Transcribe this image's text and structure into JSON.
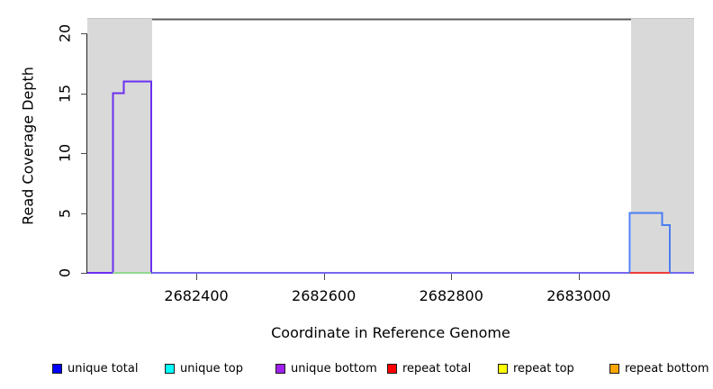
{
  "chart_data": {
    "type": "line",
    "subtype": "step-coverage-plot",
    "title": "",
    "xlabel": "Coordinate in Reference Genome",
    "ylabel": "Read Coverage Depth",
    "xlim": [
      2682229,
      2683181
    ],
    "ylim": [
      0,
      21.3
    ],
    "x_ticks": [
      2682400,
      2682600,
      2682800,
      2683000
    ],
    "y_ticks": [
      0,
      5,
      10,
      15,
      20
    ],
    "grid": false,
    "plot_bg": "#ffffff",
    "repeat_region_shading": {
      "color": "#d9d9d9",
      "regions": [
        [
          2682229,
          2682331
        ],
        [
          2683082,
          2683181
        ]
      ]
    },
    "top_extent_line": {
      "y": 21.2,
      "from": 2682331,
      "to": 2683082,
      "color": "#5b5b5b"
    },
    "series": [
      {
        "name": "zero-coverage-baseline",
        "color": "#7667ee",
        "steps": [
          [
            2682229,
            0
          ]
        ],
        "end": 2683181
      },
      {
        "name": "unique-bottom-left-peak",
        "color": "#6b2ff0",
        "steps": [
          [
            2682229,
            0
          ],
          [
            2682269,
            15
          ],
          [
            2682286,
            16
          ],
          [
            2682329,
            0
          ]
        ],
        "end": 2682331
      },
      {
        "name": "unique-total-right-peak",
        "color": "#4a7df2",
        "steps": [
          [
            2683078,
            0
          ],
          [
            2683080,
            5
          ],
          [
            2683131,
            4
          ],
          [
            2683143,
            0
          ]
        ],
        "end": 2683145
      },
      {
        "name": "repeat-total-zero-segment",
        "color": "#ef3b3b",
        "steps": [
          [
            2683080,
            0
          ]
        ],
        "end": 2683143
      },
      {
        "name": "unique-top-zero-segment",
        "color": "#90d890",
        "steps": [
          [
            2682269,
            0
          ]
        ],
        "end": 2682329
      }
    ],
    "legend_position": "bottom",
    "legend": [
      {
        "label": "unique total",
        "color": "#0000ff"
      },
      {
        "label": "unique top",
        "color": "#00ffff"
      },
      {
        "label": "unique bottom",
        "color": "#a020f0"
      },
      {
        "label": "repeat total",
        "color": "#ff0000"
      },
      {
        "label": "repeat top",
        "color": "#ffff00"
      },
      {
        "label": "repeat bottom",
        "color": "#ffa500"
      }
    ]
  }
}
